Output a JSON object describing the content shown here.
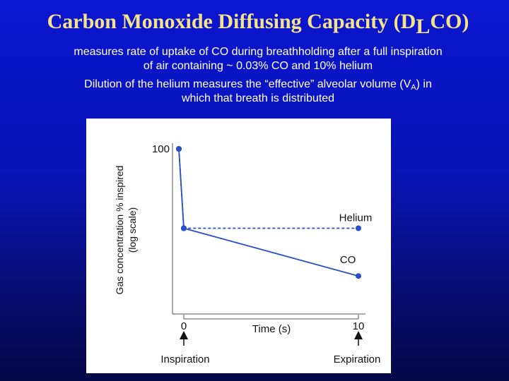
{
  "slide": {
    "title_main": "Carbon Monoxide Diffusing Capacity (D",
    "title_sub": "L",
    "title_end": "CO)",
    "line1": "measures rate of uptake of CO during breathholding after a full inspiration",
    "line2": "of air containing ~ 0.03% CO and 10% helium",
    "line3_pre": "Dilution of the helium measures the “effective” alveolar volume (V",
    "line3_sub": "A",
    "line3_post": ") in",
    "line4": "which that breath is distributed"
  },
  "chart_data": {
    "type": "line",
    "ylabel_line1": "Gas concentration % inspired",
    "ylabel_line2": "(log scale)",
    "xlabel": "Time (s)",
    "yscale": "log",
    "x_tick_labels": [
      "0",
      "10"
    ],
    "y_tick_labels": [
      "100"
    ],
    "marker_start_label": "Inspiration",
    "marker_end_label": "Expiration",
    "grid": false,
    "series": [
      {
        "name": "Helium",
        "style": "dashed",
        "color": "#2a4fc8",
        "points": [
          {
            "x": 0,
            "y": 100
          },
          {
            "x": 0,
            "y": 10
          },
          {
            "x": 10,
            "y": 10
          }
        ]
      },
      {
        "name": "CO",
        "style": "solid",
        "color": "#2a4fc8",
        "points": [
          {
            "x": 0,
            "y": 100
          },
          {
            "x": 0,
            "y": 10
          },
          {
            "x": 10,
            "y": 2.5
          }
        ]
      }
    ]
  }
}
